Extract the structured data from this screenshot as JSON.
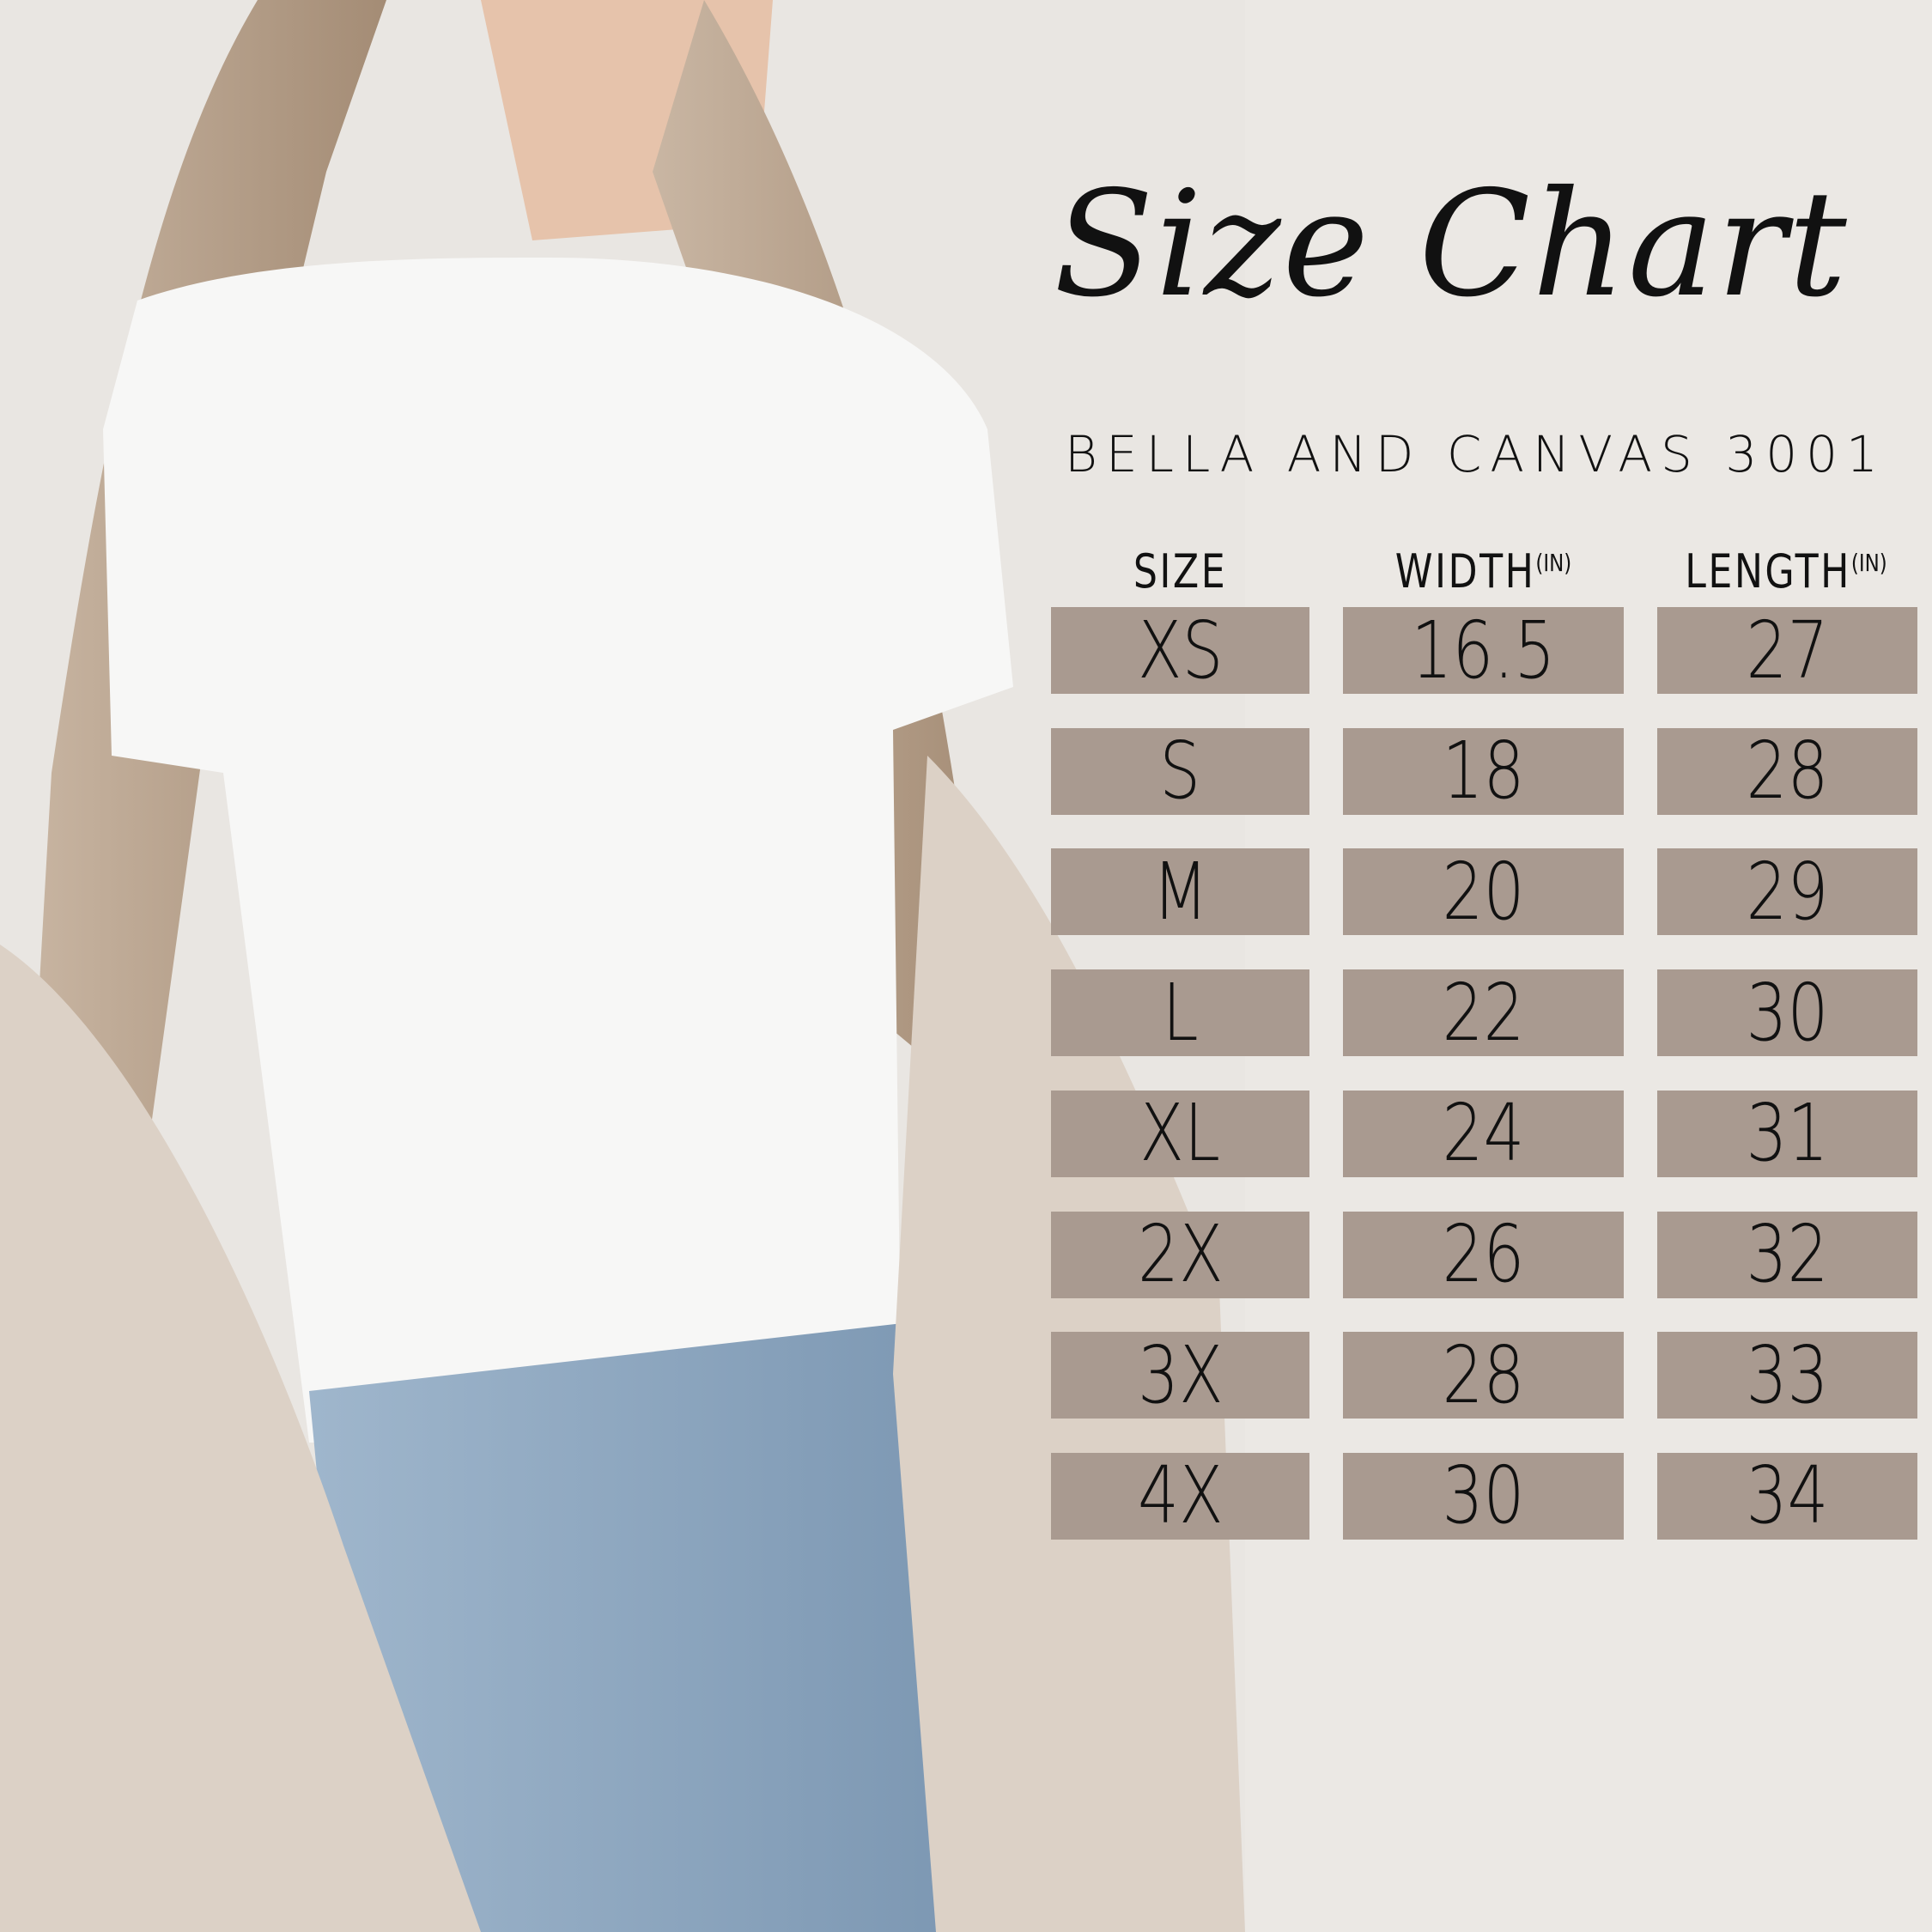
{
  "title": "Size Chart",
  "subtitle": "BELLA AND CANVAS 3001",
  "table": {
    "headers": [
      {
        "label": "SIZE",
        "unit": ""
      },
      {
        "label": "WIDTH",
        "unit": "(IN)"
      },
      {
        "label": "LENGTH",
        "unit": "(IN)"
      }
    ],
    "rows": [
      {
        "size": "XS",
        "width": "16.5",
        "length": "27"
      },
      {
        "size": "S",
        "width": "18",
        "length": "28"
      },
      {
        "size": "M",
        "width": "20",
        "length": "29"
      },
      {
        "size": "L",
        "width": "22",
        "length": "30"
      },
      {
        "size": "XL",
        "width": "24",
        "length": "31"
      },
      {
        "size": "2X",
        "width": "26",
        "length": "32"
      },
      {
        "size": "3X",
        "width": "28",
        "length": "33"
      },
      {
        "size": "4X",
        "width": "30",
        "length": "34"
      }
    ]
  },
  "colors": {
    "background": "#ebe8e4",
    "cell": "#a99a90",
    "text": "#111111"
  }
}
